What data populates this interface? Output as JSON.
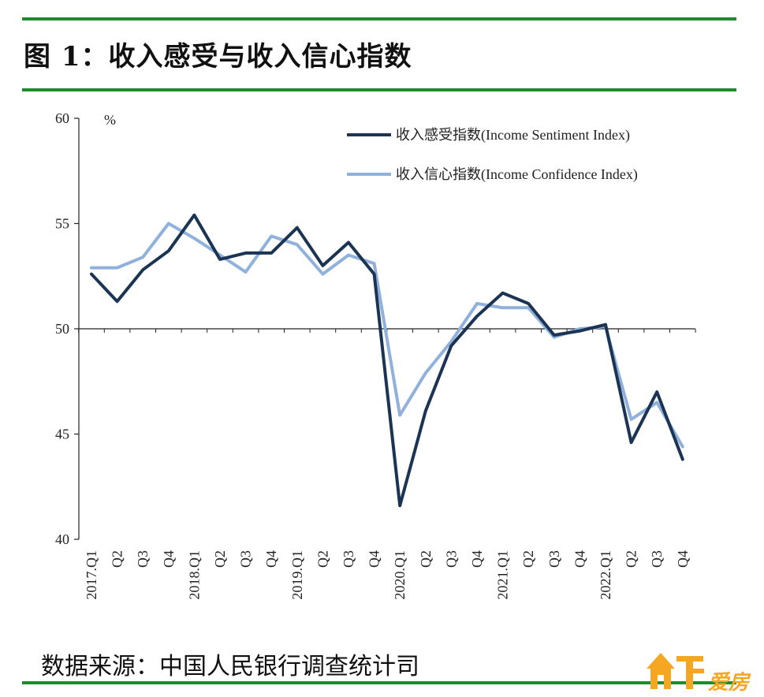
{
  "figure": {
    "title": "图 1：收入感受与收入信心指数",
    "source": "数据来源：中国人民银行调查统计司",
    "logo_text": "爱房"
  },
  "colors": {
    "rule": "#1f8a2e",
    "series_dark": "#1c3454",
    "series_light": "#8fb1dc",
    "logo": "#f5a623"
  },
  "chart_data": {
    "type": "line",
    "ylabel": "%",
    "ylim": [
      40,
      60
    ],
    "yticks": [
      "40",
      "45",
      "50",
      "55",
      "60"
    ],
    "baseline": 50,
    "grid": false,
    "legend_position": "top-right",
    "categories": [
      "2017.Q1",
      "Q2",
      "Q3",
      "Q4",
      "2018.Q1",
      "Q2",
      "Q3",
      "Q4",
      "2019.Q1",
      "Q2",
      "Q3",
      "Q4",
      "2020.Q1",
      "Q2",
      "Q3",
      "Q4",
      "2021.Q1",
      "Q2",
      "Q3",
      "Q4",
      "2022.Q1",
      "Q2",
      "Q3",
      "Q4"
    ],
    "series": [
      {
        "name": "收入感受指数(Income Sentiment Index)",
        "color": "#1c3454",
        "values": [
          52.6,
          51.3,
          52.8,
          53.7,
          55.4,
          53.3,
          53.6,
          53.6,
          54.8,
          53.0,
          54.1,
          52.6,
          41.6,
          46.1,
          49.2,
          50.6,
          51.7,
          51.2,
          49.7,
          49.9,
          50.2,
          44.6,
          47.0,
          43.8
        ]
      },
      {
        "name": "收入信心指数(Income Confidence Index)",
        "color": "#8fb1dc",
        "values": [
          52.9,
          52.9,
          53.4,
          55.0,
          54.3,
          53.5,
          52.7,
          54.4,
          54.0,
          52.6,
          53.5,
          53.1,
          45.9,
          47.9,
          49.4,
          51.2,
          51.0,
          51.0,
          49.6,
          50.0,
          50.1,
          45.7,
          46.5,
          44.4
        ]
      }
    ]
  }
}
